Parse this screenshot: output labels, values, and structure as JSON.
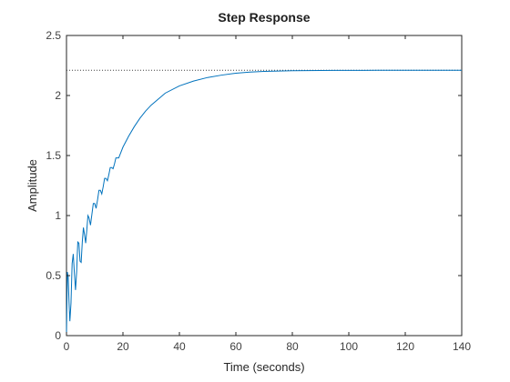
{
  "chart_data": {
    "type": "line",
    "title": "Step Response",
    "xlabel": "Time (seconds)",
    "ylabel": "Amplitude",
    "xlim": [
      0,
      140
    ],
    "ylim": [
      0,
      2.5
    ],
    "xticks": [
      0,
      20,
      40,
      60,
      80,
      100,
      120,
      140
    ],
    "yticks": [
      0,
      0.5,
      1,
      1.5,
      2,
      2.5
    ],
    "xtick_labels": [
      "0",
      "20",
      "40",
      "60",
      "80",
      "100",
      "120",
      "140"
    ],
    "ytick_labels": [
      "0",
      "0.5",
      "1",
      "1.5",
      "2",
      "2.5"
    ],
    "grid": false,
    "steady_state": 2.21,
    "series": [
      {
        "color": "#0072bd",
        "x": [
          0,
          0.3,
          0.6,
          0.9,
          1.2,
          1.6,
          2.0,
          2.4,
          2.8,
          3.2,
          3.6,
          4.0,
          4.4,
          4.8,
          5.2,
          5.6,
          6.0,
          6.4,
          6.8,
          7.2,
          7.6,
          8.0,
          8.5,
          9.0,
          9.5,
          10.0,
          10.5,
          11.0,
          11.5,
          12.0,
          12.5,
          13.0,
          13.5,
          14.0,
          14.5,
          15.0,
          15.5,
          16.0,
          16.5,
          17.0,
          17.5,
          18.0,
          18.5,
          19.0,
          20,
          22,
          24,
          26,
          28,
          30,
          35,
          40,
          45,
          50,
          55,
          60,
          65,
          70,
          75,
          80,
          85,
          90,
          95,
          100,
          105,
          110,
          115,
          120,
          125,
          130,
          135,
          140
        ],
        "y": [
          0,
          0.53,
          0.49,
          0.28,
          0.12,
          0.27,
          0.6,
          0.68,
          0.52,
          0.38,
          0.53,
          0.78,
          0.77,
          0.62,
          0.61,
          0.78,
          0.9,
          0.84,
          0.77,
          0.88,
          1.0,
          0.98,
          0.92,
          1.01,
          1.1,
          1.1,
          1.06,
          1.13,
          1.21,
          1.21,
          1.18,
          1.24,
          1.31,
          1.31,
          1.29,
          1.34,
          1.4,
          1.4,
          1.39,
          1.43,
          1.48,
          1.48,
          1.48,
          1.51,
          1.57,
          1.66,
          1.74,
          1.81,
          1.87,
          1.92,
          2.02,
          2.08,
          2.12,
          2.15,
          2.17,
          2.186,
          2.195,
          2.201,
          2.204,
          2.206,
          2.207,
          2.208,
          2.209,
          2.2093,
          2.2096,
          2.2098,
          2.2099,
          2.21,
          2.21,
          2.21,
          2.21,
          2.21
        ]
      }
    ]
  }
}
